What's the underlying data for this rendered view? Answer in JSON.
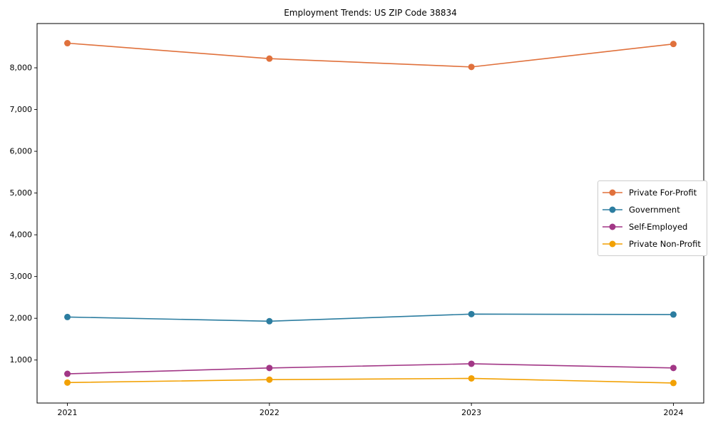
{
  "chart_data": {
    "type": "line",
    "title": "Employment Trends: US ZIP Code 38834",
    "xlabel": "",
    "ylabel": "",
    "x": [
      "2021",
      "2022",
      "2023",
      "2024"
    ],
    "series": [
      {
        "name": "Private For-Profit",
        "color": "#E0713C",
        "values": [
          8590,
          8220,
          8020,
          8570
        ]
      },
      {
        "name": "Government",
        "color": "#2C7DA0",
        "values": [
          2030,
          1930,
          2100,
          2090
        ]
      },
      {
        "name": "Self-Employed",
        "color": "#A23786",
        "values": [
          670,
          810,
          910,
          810
        ]
      },
      {
        "name": "Private Non-Profit",
        "color": "#F2A104",
        "values": [
          460,
          530,
          560,
          450
        ]
      }
    ],
    "yticks": [
      1000,
      2000,
      3000,
      4000,
      5000,
      6000,
      7000,
      8000
    ],
    "ytick_labels": [
      "1,000",
      "2,000",
      "3,000",
      "4,000",
      "5,000",
      "6,000",
      "7,000",
      "8,000"
    ],
    "ylim": [
      -30,
      9060
    ],
    "grid": false,
    "marker": "o",
    "legend_position": "center-right-inside",
    "axis_color": "#000000",
    "background_color": "#ffffff"
  }
}
